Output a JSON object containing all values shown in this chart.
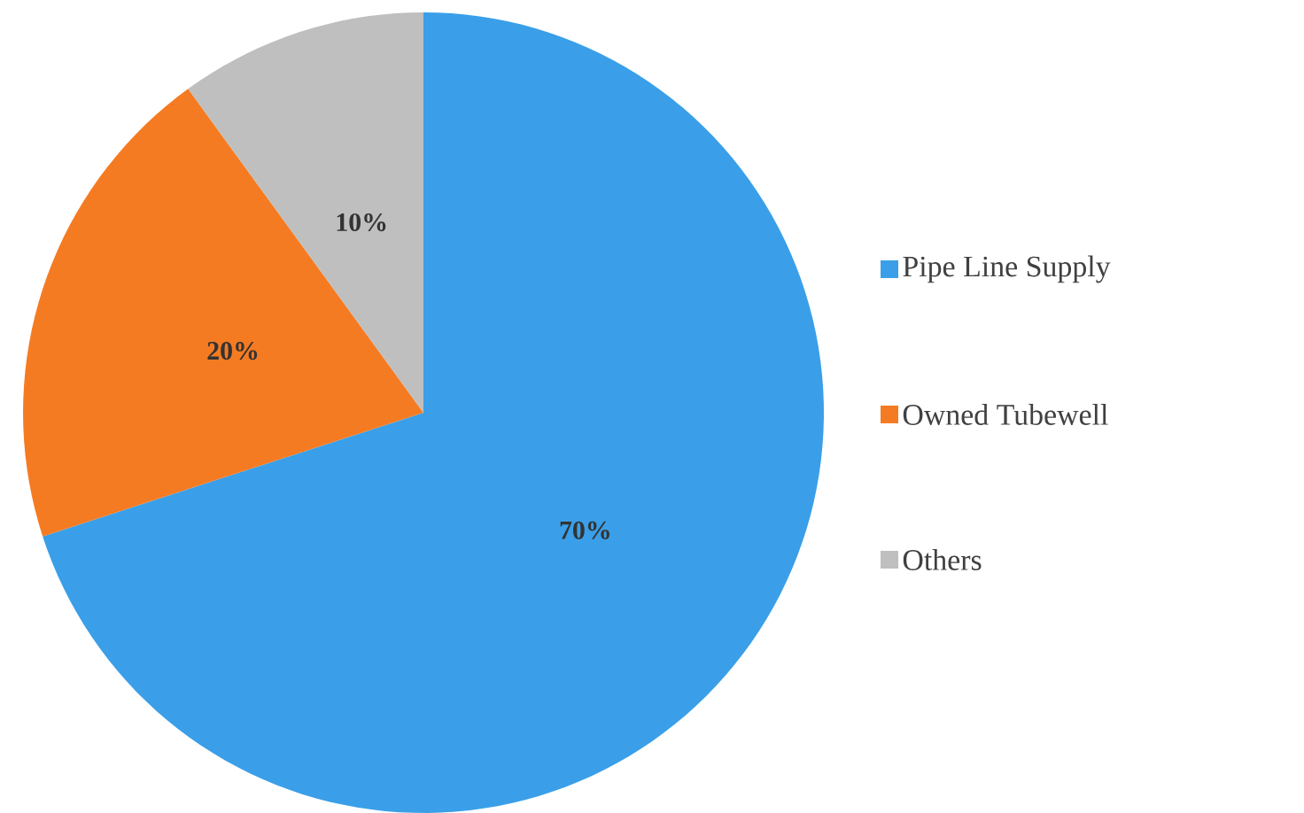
{
  "chart_data": {
    "type": "pie",
    "categories": [
      "Pipe Line Supply",
      "Owned Tubewell",
      "Others"
    ],
    "values": [
      70,
      20,
      10
    ],
    "colors": [
      "#3a9fe8",
      "#f57b22",
      "#bfbfbf"
    ],
    "value_labels": [
      "70%",
      "20%",
      "10%"
    ],
    "legend": "right"
  }
}
